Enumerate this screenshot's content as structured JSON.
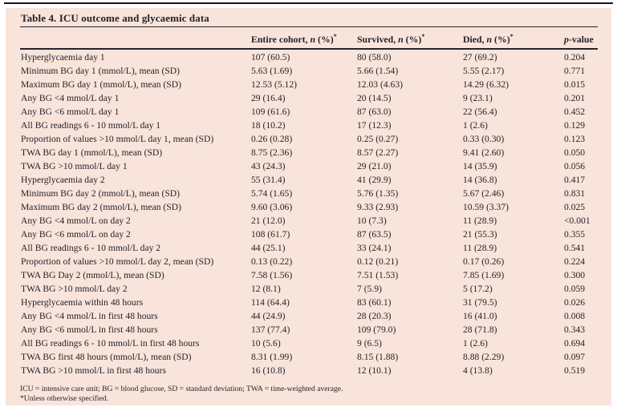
{
  "title": "Table 4. ICU outcome and glycaemic data",
  "colors": {
    "page_bg": "#ffffff",
    "table_bg": "#f8e4da",
    "text": "#25222c",
    "rule": "#25222c"
  },
  "table": {
    "columns": [
      {
        "prefix": "Entire cohort, ",
        "italic": "n",
        "suffix": " (%)",
        "sup": "*"
      },
      {
        "prefix": "Survived, ",
        "italic": "n",
        "suffix": " (%)",
        "sup": "*"
      },
      {
        "prefix": "Died, ",
        "italic": "n",
        "suffix": " (%)",
        "sup": "*"
      },
      {
        "prefix": "",
        "italic": "p",
        "suffix": "-value",
        "sup": ""
      }
    ],
    "rows": [
      {
        "label": "Hyperglycaemia day 1",
        "entire": "107 (60.5)",
        "survived": "80 (58.0)",
        "died": "27 (69.2)",
        "p": "0.204"
      },
      {
        "label": "Minimum BG day 1 (mmol/L), mean (SD)",
        "entire": "5.63 (1.69)",
        "survived": "5.66 (1.54)",
        "died": "5.55 (2.17)",
        "p": "0.771"
      },
      {
        "label": "Maximum BG day 1 (mmol/L), mean (SD)",
        "entire": "12.53 (5.12)",
        "survived": "12.03 (4.63)",
        "died": "14.29 (6.32)",
        "p": "0.015"
      },
      {
        "label": "Any BG <4 mmol/L day 1",
        "entire": "29 (16.4)",
        "survived": "20 (14.5)",
        "died": "9 (23.1)",
        "p": "0.201"
      },
      {
        "label": "Any BG <6 mmol/L day 1",
        "entire": "109 (61.6)",
        "survived": "87 (63.0)",
        "died": "22 (56.4)",
        "p": "0.452"
      },
      {
        "label": "All BG readings 6 - 10 mmol/L day 1",
        "entire": "18 (10.2)",
        "survived": "17 (12.3)",
        "died": "1 (2.6)",
        "p": "0.129"
      },
      {
        "label": "Proportion of values >10 mmol/L day 1, mean (SD)",
        "entire": "0.26 (0.28)",
        "survived": "0.25 (0.27)",
        "died": "0.33 (0.30)",
        "p": "0.123"
      },
      {
        "label": "TWA BG day 1 (mmol/L), mean (SD)",
        "entire": "8.75 (2.36)",
        "survived": "8.57 (2.27)",
        "died": "9.41 (2.60)",
        "p": "0.050"
      },
      {
        "label": "TWA BG >10 mmol/L day 1",
        "entire": "43 (24.3)",
        "survived": "29 (21.0)",
        "died": "14 (35.9)",
        "p": "0.056"
      },
      {
        "label": "Hyperglycaemia day 2",
        "entire": "55 (31.4)",
        "survived": "41 (29.9)",
        "died": "14 (36.8)",
        "p": "0.417"
      },
      {
        "label": "Minimum BG day 2 (mmol/L), mean (SD)",
        "entire": "5.74 (1.65)",
        "survived": "5.76 (1.35)",
        "died": "5.67 (2.46)",
        "p": "0.831"
      },
      {
        "label": "Maximum BG day 2 (mmol/L), mean (SD)",
        "entire": "9.60 (3.06)",
        "survived": "9.33 (2.93)",
        "died": "10.59 (3.37)",
        "p": "0.025"
      },
      {
        "label": "Any BG <4 mmol/L on day 2",
        "entire": "21 (12.0)",
        "survived": "10 (7.3)",
        "died": "11 (28.9)",
        "p": "<0.001"
      },
      {
        "label": "Any BG <6 mmol/L on day 2",
        "entire": "108 (61.7)",
        "survived": "87 (63.5)",
        "died": "21 (55.3)",
        "p": "0.355"
      },
      {
        "label": "All BG readings 6 - 10 mmol/L day 2",
        "entire": "44 (25.1)",
        "survived": "33 (24.1)",
        "died": "11 (28.9)",
        "p": "0.541"
      },
      {
        "label": "Proportion of values >10 mmol/L day 2, mean (SD)",
        "entire": "0.13 (0.22)",
        "survived": "0.12 (0.21)",
        "died": "0.17 (0.26)",
        "p": "0.224"
      },
      {
        "label": "TWA BG Day 2 (mmol/L), mean (SD)",
        "entire": "7.58 (1.56)",
        "survived": "7.51 (1.53)",
        "died": "7.85 (1.69)",
        "p": "0.300"
      },
      {
        "label": "TWA BG >10 mmol/L day 2",
        "entire": "12 (8.1)",
        "survived": "7 (5.9)",
        "died": "5 (17.2)",
        "p": "0.059"
      },
      {
        "label": "Hyperglycaemia within 48 hours",
        "entire": "114 (64.4)",
        "survived": "83 (60.1)",
        "died": "31 (79.5)",
        "p": "0.026"
      },
      {
        "label": "Any BG <4 mmol/L in first 48 hours",
        "entire": "44 (24.9)",
        "survived": "28 (20.3)",
        "died": "16 (41.0)",
        "p": "0.008"
      },
      {
        "label": "Any BG <6 mmol/L in first 48 hours",
        "entire": "137 (77.4)",
        "survived": "109 (79.0)",
        "died": "28 (71.8)",
        "p": "0.343"
      },
      {
        "label": "All BG readings 6 - 10 mmol/L in first 48 hours",
        "entire": "10 (5.6)",
        "survived": "9 (6.5)",
        "died": "1 (2.6)",
        "p": "0.694"
      },
      {
        "label": "TWA BG first 48 hours (mmol/L), mean (SD)",
        "entire": "8.31 (1.99)",
        "survived": "8.15 (1.88)",
        "died": "8.88 (2.29)",
        "p": "0.097"
      },
      {
        "label": "TWA BG >10 mmol/L in first 48 hours",
        "entire": "16 (10.8)",
        "survived": "12 (10.1)",
        "died": "4 (13.8)",
        "p": "0.519"
      }
    ]
  },
  "footnotes": [
    "ICU = intensive care unit; BG = blood glucose, SD = standard deviation; TWA = time-weighted average.",
    "*Unless otherwise specified."
  ]
}
